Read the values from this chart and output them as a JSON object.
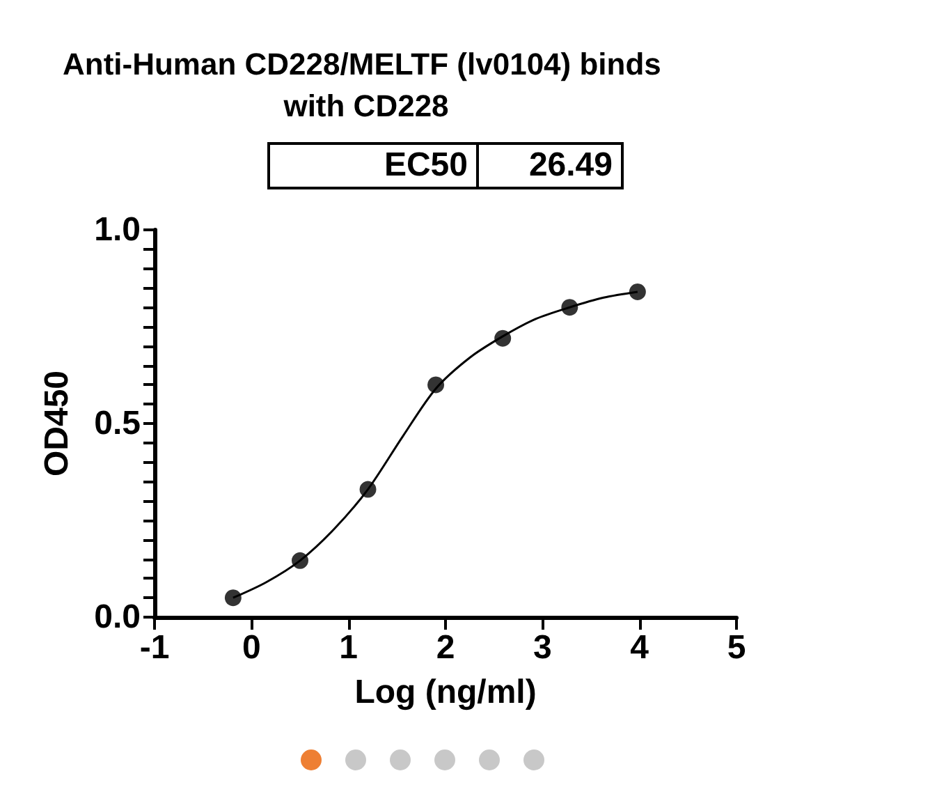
{
  "chart_data": {
    "type": "scatter",
    "title": "Anti-Human CD228/MELTF (lv0104) binds with CD228",
    "xlabel": "Log (ng/ml)",
    "ylabel": "OD450",
    "annotations": [
      "EC50",
      "26.49"
    ],
    "series": [
      {
        "color": "#000000",
        "marker": "circle",
        "x": [
          -0.19,
          0.5,
          1.2,
          1.9,
          2.59,
          3.28,
          3.98
        ],
        "values": [
          0.05,
          0.146,
          0.33,
          0.6,
          0.72,
          0.8,
          0.84
        ]
      },
      {
        "type": "line",
        "color": "#000000",
        "marker": "none",
        "line_style": "solid",
        "x": [
          -0.19,
          0.15,
          0.5,
          0.85,
          1.2,
          1.56,
          1.9,
          2.25,
          2.59,
          2.93,
          3.28,
          3.63,
          3.98
        ],
        "values": [
          0.05,
          0.09,
          0.146,
          0.227,
          0.33,
          0.467,
          0.59,
          0.67,
          0.725,
          0.77,
          0.8,
          0.825,
          0.84
        ]
      }
    ],
    "xlim": [
      -1,
      5
    ],
    "xticks": [
      -1,
      0,
      1,
      2,
      3,
      4,
      5
    ],
    "ylim": [
      0,
      1
    ],
    "yticks": [
      {
        "value": 0,
        "label": "0.0"
      },
      {
        "value": 0.05,
        "label": null
      },
      {
        "value": 0.1,
        "label": null
      },
      {
        "value": 0.15,
        "label": null
      },
      {
        "value": 0.2,
        "label": null
      },
      {
        "value": 0.25,
        "label": null
      },
      {
        "value": 0.3,
        "label": null
      },
      {
        "value": 0.35,
        "label": null
      },
      {
        "value": 0.4,
        "label": null
      },
      {
        "value": 0.45,
        "label": null
      },
      {
        "value": 0.5,
        "label": "0.5"
      },
      {
        "value": 0.55,
        "label": null
      },
      {
        "value": 0.6,
        "label": null
      },
      {
        "value": 0.65,
        "label": null
      },
      {
        "value": 0.7,
        "label": null
      },
      {
        "value": 0.75,
        "label": null
      },
      {
        "value": 0.8,
        "label": null
      },
      {
        "value": 0.85,
        "label": null
      },
      {
        "value": 0.9,
        "label": null
      },
      {
        "value": 0.95,
        "label": null
      },
      {
        "value": 1,
        "label": "1.0"
      }
    ],
    "grid": false
  }
}
